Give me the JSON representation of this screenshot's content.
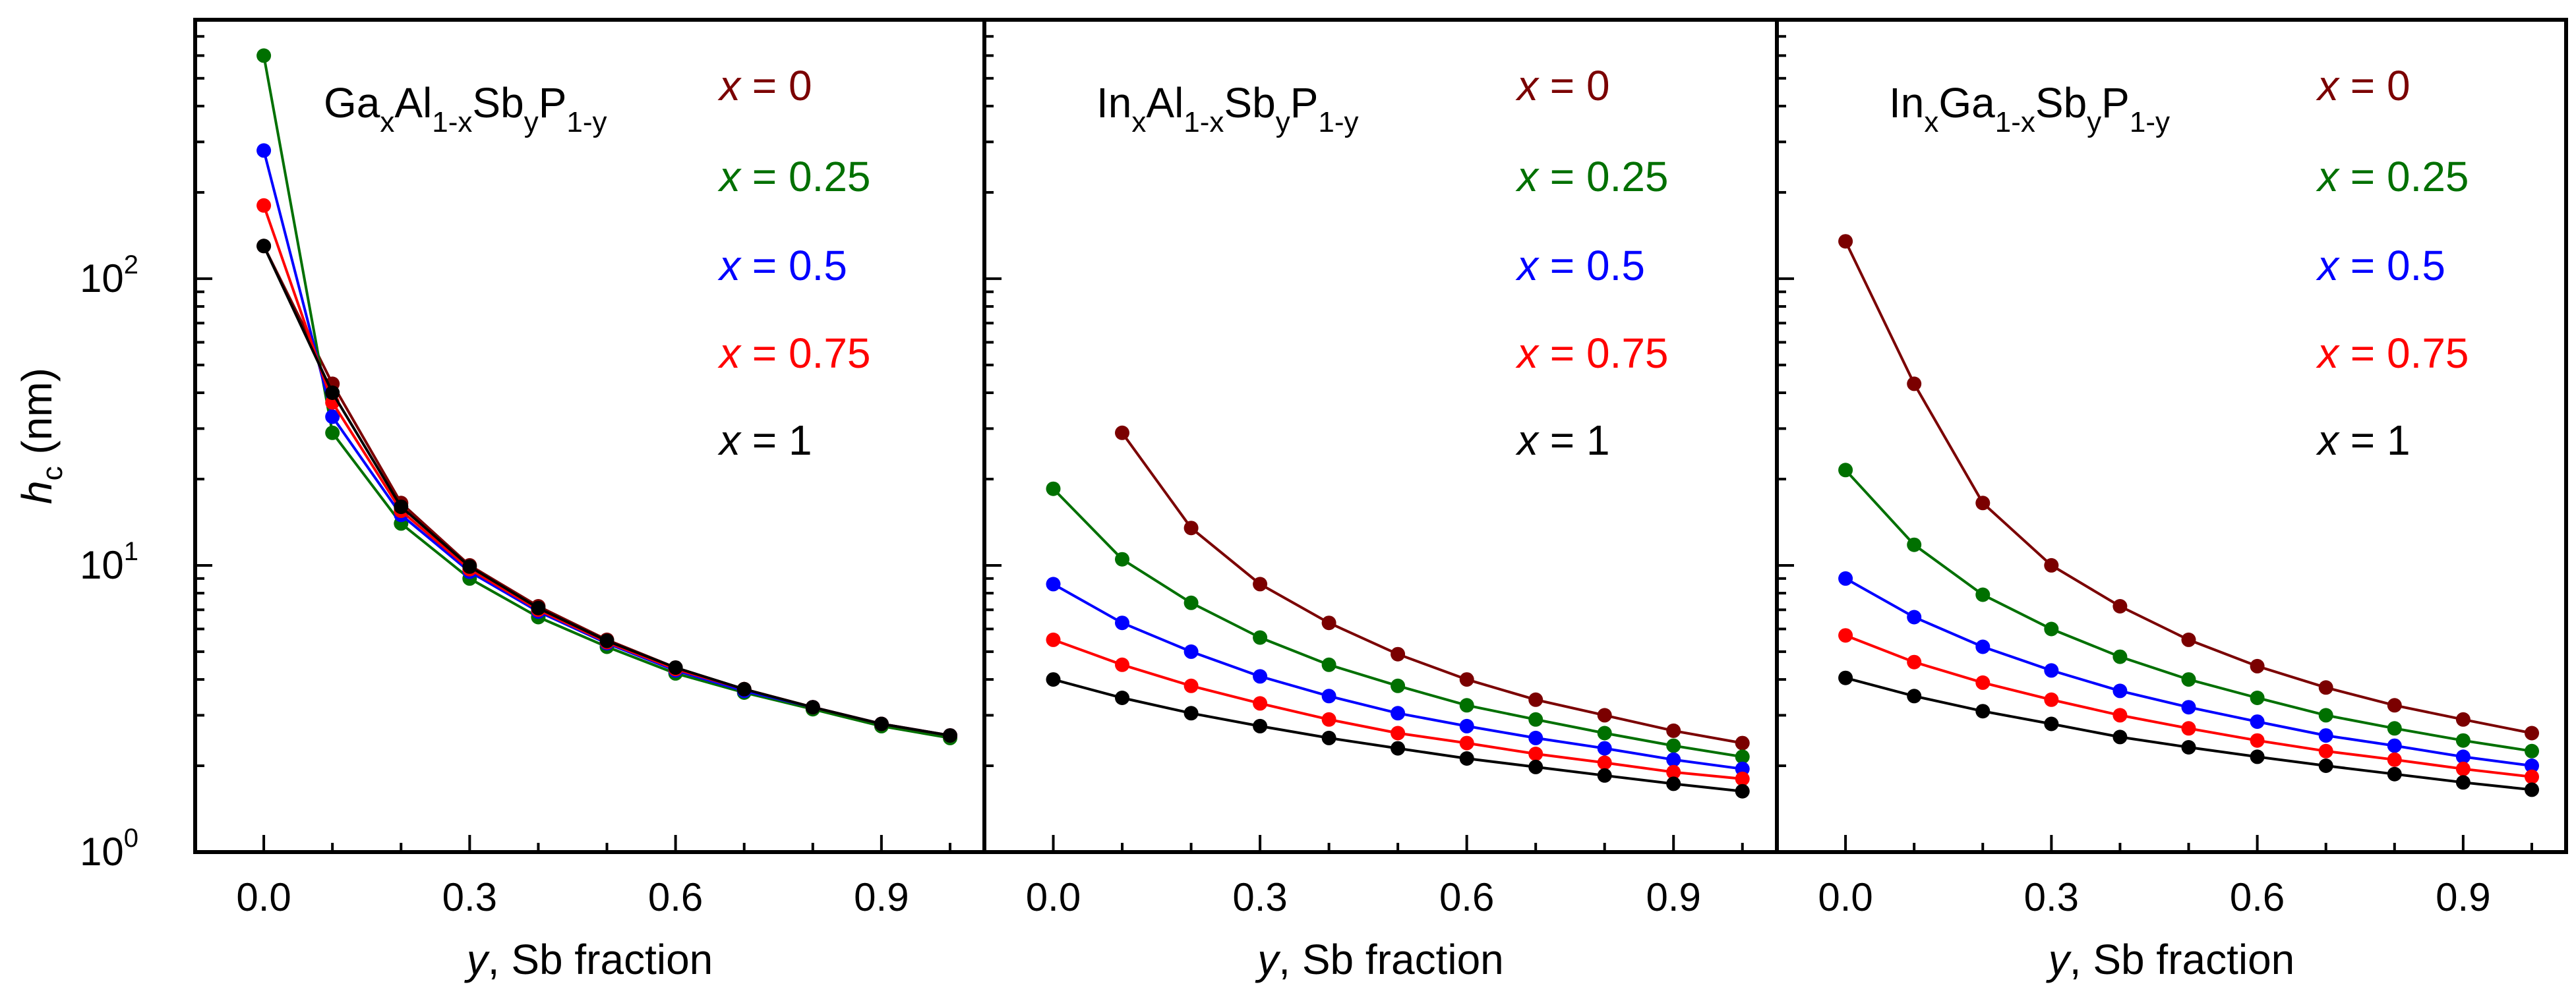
{
  "figure": {
    "ylabel_main": "h",
    "ylabel_sub": "c",
    "ylabel_units": " (nm)",
    "y_ticks": [
      {
        "base": "10",
        "exp": "0",
        "value": 1
      },
      {
        "base": "10",
        "exp": "1",
        "value": 10
      },
      {
        "base": "10",
        "exp": "2",
        "value": 100
      }
    ],
    "x_ticks": [
      "0.0",
      "0.3",
      "0.6",
      "0.9"
    ],
    "xlabel_var": "y",
    "xlabel_text": ", Sb fraction"
  },
  "chart_data": [
    {
      "type": "line",
      "title": "GaxAl1-xSbyP1-y",
      "title_parts": [
        {
          "t": "Ga",
          "sub": false
        },
        {
          "t": "x",
          "sub": true
        },
        {
          "t": "Al",
          "sub": false
        },
        {
          "t": "1-x",
          "sub": true
        },
        {
          "t": "Sb",
          "sub": false
        },
        {
          "t": "y",
          "sub": true
        },
        {
          "t": "P",
          "sub": false
        },
        {
          "t": "1-y",
          "sub": true
        }
      ],
      "xlabel": "y, Sb fraction",
      "ylabel": "hc (nm)",
      "yscale": "log",
      "xlim": [
        -0.1,
        1.05
      ],
      "ylim": [
        1,
        800
      ],
      "x": [
        0,
        0.1,
        0.2,
        0.3,
        0.4,
        0.5,
        0.6,
        0.7,
        0.8,
        0.9,
        1.0
      ],
      "series": [
        {
          "name": "x = 0",
          "var": "x",
          "label_value": "0",
          "color": "#7b0000",
          "values": [
            130,
            43,
            16.5,
            10,
            7.2,
            5.5,
            4.4,
            3.7,
            3.2,
            2.8,
            2.55
          ]
        },
        {
          "name": "x = 0.25",
          "var": "x",
          "label_value": "0.25",
          "color": "#007000",
          "values": [
            600,
            29,
            14,
            9,
            6.6,
            5.2,
            4.2,
            3.6,
            3.15,
            2.75,
            2.5
          ]
        },
        {
          "name": "x = 0.5",
          "var": "x",
          "label_value": "0.5",
          "color": "#0000ff",
          "values": [
            280,
            33,
            15,
            9.5,
            6.9,
            5.35,
            4.3,
            3.65,
            3.2,
            2.8,
            2.55
          ]
        },
        {
          "name": "x = 0.75",
          "var": "x",
          "label_value": "0.75",
          "color": "#ff0000",
          "values": [
            180,
            37,
            15.5,
            9.7,
            7.0,
            5.4,
            4.35,
            3.7,
            3.2,
            2.8,
            2.55
          ]
        },
        {
          "name": "x = 1",
          "var": "x",
          "label_value": "1",
          "color": "#000000",
          "values": [
            130,
            40,
            16,
            9.9,
            7.1,
            5.45,
            4.4,
            3.7,
            3.2,
            2.8,
            2.55
          ]
        }
      ]
    },
    {
      "type": "line",
      "title": "InxAl1-xSbyP1-y",
      "title_parts": [
        {
          "t": "In",
          "sub": false
        },
        {
          "t": "x",
          "sub": true
        },
        {
          "t": "Al",
          "sub": false
        },
        {
          "t": "1-x",
          "sub": true
        },
        {
          "t": "Sb",
          "sub": false
        },
        {
          "t": "y",
          "sub": true
        },
        {
          "t": "P",
          "sub": false
        },
        {
          "t": "1-y",
          "sub": true
        }
      ],
      "xlabel": "y, Sb fraction",
      "ylabel": "hc (nm)",
      "yscale": "log",
      "xlim": [
        -0.1,
        1.05
      ],
      "ylim": [
        1,
        800
      ],
      "x": [
        0,
        0.1,
        0.2,
        0.3,
        0.4,
        0.5,
        0.6,
        0.7,
        0.8,
        0.9,
        1.0
      ],
      "series": [
        {
          "name": "x = 0",
          "var": "x",
          "label_value": "0",
          "color": "#7b0000",
          "values": [
            null,
            29,
            13.5,
            8.6,
            6.3,
            4.9,
            4.0,
            3.4,
            3.0,
            2.65,
            2.4
          ]
        },
        {
          "name": "x = 0.25",
          "var": "x",
          "label_value": "0.25",
          "color": "#007000",
          "values": [
            18.5,
            10.5,
            7.4,
            5.6,
            4.5,
            3.8,
            3.25,
            2.9,
            2.6,
            2.35,
            2.15
          ]
        },
        {
          "name": "x = 0.5",
          "var": "x",
          "label_value": "0.5",
          "color": "#0000ff",
          "values": [
            8.6,
            6.3,
            5.0,
            4.1,
            3.5,
            3.05,
            2.75,
            2.5,
            2.3,
            2.1,
            1.95
          ]
        },
        {
          "name": "x = 0.75",
          "var": "x",
          "label_value": "0.75",
          "color": "#ff0000",
          "values": [
            5.5,
            4.5,
            3.8,
            3.3,
            2.9,
            2.6,
            2.4,
            2.2,
            2.05,
            1.9,
            1.8
          ]
        },
        {
          "name": "x = 1",
          "var": "x",
          "label_value": "1",
          "color": "#000000",
          "values": [
            4.0,
            3.45,
            3.05,
            2.75,
            2.5,
            2.3,
            2.12,
            1.98,
            1.85,
            1.73,
            1.63
          ]
        }
      ]
    },
    {
      "type": "line",
      "title": "InxGa1-xSbyP1-y",
      "title_parts": [
        {
          "t": "In",
          "sub": false
        },
        {
          "t": "x",
          "sub": true
        },
        {
          "t": "Ga",
          "sub": false
        },
        {
          "t": "1-x",
          "sub": true
        },
        {
          "t": "Sb",
          "sub": false
        },
        {
          "t": "y",
          "sub": true
        },
        {
          "t": "P",
          "sub": false
        },
        {
          "t": "1-y",
          "sub": true
        }
      ],
      "xlabel": "y, Sb fraction",
      "ylabel": "hc (nm)",
      "yscale": "log",
      "xlim": [
        -0.1,
        1.05
      ],
      "ylim": [
        1,
        800
      ],
      "x": [
        0,
        0.1,
        0.2,
        0.3,
        0.4,
        0.5,
        0.6,
        0.7,
        0.8,
        0.9,
        1.0
      ],
      "series": [
        {
          "name": "x = 0",
          "var": "x",
          "label_value": "0",
          "color": "#7b0000",
          "values": [
            135,
            43,
            16.5,
            10,
            7.2,
            5.5,
            4.45,
            3.75,
            3.25,
            2.9,
            2.6
          ]
        },
        {
          "name": "x = 0.25",
          "var": "x",
          "label_value": "0.25",
          "color": "#007000",
          "values": [
            21.5,
            11.8,
            7.9,
            6.0,
            4.8,
            4.0,
            3.45,
            3.0,
            2.7,
            2.45,
            2.25
          ]
        },
        {
          "name": "x = 0.5",
          "var": "x",
          "label_value": "0.5",
          "color": "#0000ff",
          "values": [
            9.0,
            6.6,
            5.2,
            4.3,
            3.65,
            3.2,
            2.85,
            2.55,
            2.35,
            2.15,
            2.0
          ]
        },
        {
          "name": "x = 0.75",
          "var": "x",
          "label_value": "0.75",
          "color": "#ff0000",
          "values": [
            5.7,
            4.6,
            3.9,
            3.4,
            3.0,
            2.7,
            2.45,
            2.25,
            2.1,
            1.95,
            1.83
          ]
        },
        {
          "name": "x = 1",
          "var": "x",
          "label_value": "1",
          "color": "#000000",
          "values": [
            4.05,
            3.5,
            3.1,
            2.8,
            2.52,
            2.32,
            2.15,
            2.0,
            1.87,
            1.75,
            1.65
          ]
        }
      ]
    }
  ]
}
